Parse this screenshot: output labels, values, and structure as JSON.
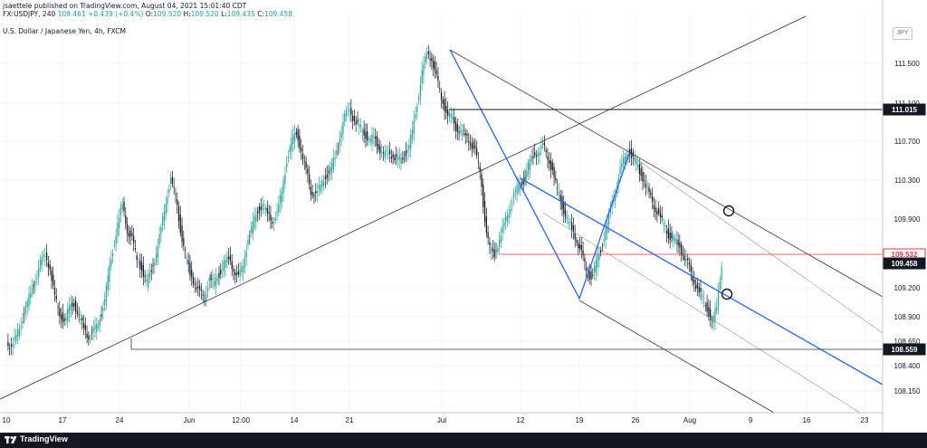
{
  "header": {
    "publisher": "jsaettele published on TradingView.com, August 04, 2021 15:01:40 CDT",
    "symbol": "FX:USDJPY, 240",
    "last": "109.461",
    "change": "+0.439 (+0.4%)",
    "open_label": "O:",
    "open": "109.520",
    "high_label": "H:",
    "high": "109.520",
    "low_label": "L:",
    "low": "109.435",
    "close_label": "C:",
    "close": "109.458",
    "instrument": "U.S. Dollar / Japanese Yen, 4h, FXCM"
  },
  "currency_button": "JPY",
  "footer": {
    "brand": "TradingView"
  },
  "colors": {
    "up": "#26a69a",
    "down": "#131722",
    "blue_line": "#2962ff",
    "red_line": "#f23645",
    "accent_text": "#ffffff"
  },
  "chart_data": {
    "type": "candlestick",
    "y_axis_ticks": [
      "111.500",
      "111.100",
      "110.700",
      "110.300",
      "109.900",
      "109.200",
      "108.900",
      "108.650",
      "108.400",
      "108.150"
    ],
    "x_axis_ticks": [
      "10",
      "17",
      "24",
      "Jun",
      "12:00",
      "14",
      "21",
      "Jul",
      "12",
      "19",
      "26",
      "Aug",
      "9",
      "16",
      "23"
    ],
    "price_labels": [
      {
        "value": "111.015",
        "style": "black"
      },
      {
        "value": "109.532",
        "style": "red"
      },
      {
        "value": "109.458",
        "style": "black"
      },
      {
        "value": "108.559",
        "style": "black"
      }
    ],
    "horizontal_levels": [
      111.015,
      109.532,
      108.559
    ],
    "ohlc_close_path": [
      108.65,
      108.6,
      108.7,
      108.85,
      109.0,
      109.15,
      109.3,
      109.45,
      109.55,
      109.4,
      109.1,
      108.95,
      108.85,
      109.0,
      109.05,
      108.9,
      108.8,
      108.7,
      108.75,
      108.85,
      109.0,
      109.3,
      109.6,
      109.85,
      110.05,
      109.8,
      109.7,
      109.5,
      109.4,
      109.25,
      109.4,
      109.55,
      109.8,
      110.1,
      110.3,
      110.15,
      109.8,
      109.55,
      109.35,
      109.25,
      109.15,
      109.1,
      109.3,
      109.25,
      109.35,
      109.45,
      109.5,
      109.4,
      109.3,
      109.45,
      109.7,
      109.85,
      110.0,
      110.05,
      109.95,
      109.9,
      109.95,
      110.2,
      110.5,
      110.7,
      110.8,
      110.6,
      110.4,
      110.2,
      110.15,
      110.25,
      110.35,
      110.4,
      110.55,
      110.75,
      110.95,
      111.05,
      110.9,
      110.85,
      110.8,
      110.7,
      110.75,
      110.65,
      110.55,
      110.6,
      110.55,
      110.5,
      110.55,
      110.6,
      110.8,
      111.1,
      111.4,
      111.6,
      111.55,
      111.35,
      111.15,
      111.0,
      110.95,
      110.85,
      110.8,
      110.75,
      110.7,
      110.6,
      110.4,
      109.9,
      109.6,
      109.55,
      109.7,
      109.85,
      110.0,
      110.15,
      110.25,
      110.3,
      110.45,
      110.55,
      110.6,
      110.65,
      110.55,
      110.4,
      110.2,
      110.05,
      109.9,
      109.8,
      109.7,
      109.55,
      109.4,
      109.3,
      109.45,
      109.6,
      109.8,
      110.0,
      110.2,
      110.4,
      110.55,
      110.6,
      110.5,
      110.4,
      110.3,
      110.15,
      110.05,
      109.95,
      109.85,
      109.75,
      109.7,
      109.65,
      109.55,
      109.45,
      109.3,
      109.2,
      109.1,
      109.0,
      108.85,
      109.0,
      109.45
    ],
    "grid": true
  }
}
